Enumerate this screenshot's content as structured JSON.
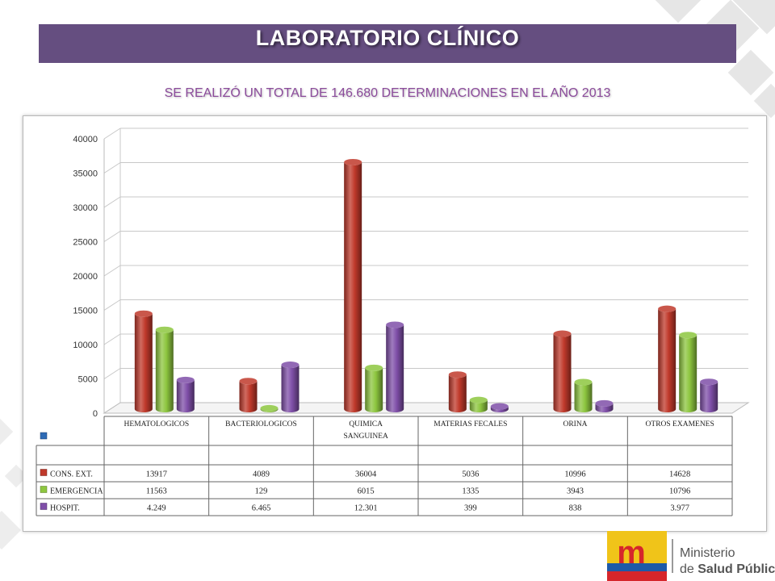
{
  "title": "LABORATORIO CLÍNICO",
  "subtitle": "SE REALIZÓ UN TOTAL DE 146.680 DETERMINACIONES EN EL AÑO 2013",
  "logo": {
    "mark": "m",
    "line1": "Ministerio",
    "line2_prefix": "de ",
    "line2_bold": "Salud Pública"
  },
  "chart_data": {
    "type": "bar",
    "ylim": [
      0,
      40000
    ],
    "yticks": [
      "0",
      "5000",
      "10000",
      "15000",
      "20000",
      "25000",
      "30000",
      "35000",
      "40000"
    ],
    "categories": [
      "HEMATOLOGICOS",
      "BACTERIOLOGICOS",
      "QUIMICA SANGUINEA",
      "MATERIAS FECALES",
      "ORINA",
      "OTROS EXAMENES"
    ],
    "series": [
      {
        "name": "CONS. EXT.",
        "color": "#c0392b",
        "values": [
          13917,
          4089,
          36004,
          5036,
          10996,
          14628
        ],
        "labels": [
          "13917",
          "4089",
          "36004",
          "5036",
          "10996",
          "14628"
        ]
      },
      {
        "name": "EMERGENCIA",
        "color": "#8dc63f",
        "values": [
          11563,
          129,
          6015,
          1335,
          3943,
          10796
        ],
        "labels": [
          "11563",
          "129",
          "6015",
          "1335",
          "3943",
          "10796"
        ]
      },
      {
        "name": "HOSPIT.",
        "color": "#7f4fa8",
        "values": [
          4249,
          6465,
          12301,
          399,
          838,
          3977
        ],
        "labels": [
          "4.249",
          "6.465",
          "12.301",
          "399",
          "838",
          "3.977"
        ]
      }
    ],
    "table_header_marker_color": "#2e6bb5",
    "grid": true,
    "legend": "data-table"
  }
}
